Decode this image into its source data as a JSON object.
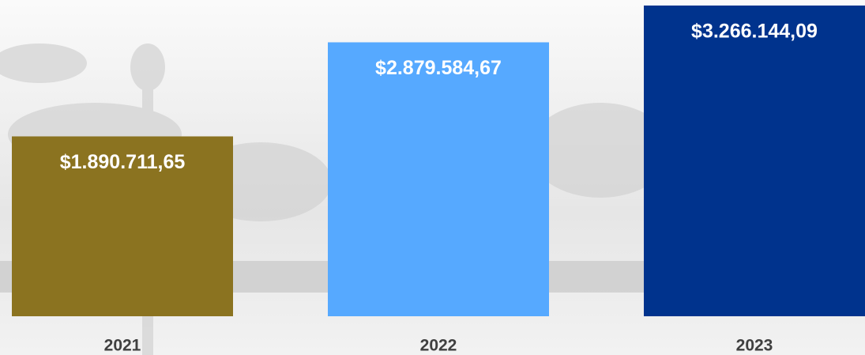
{
  "chart_data": {
    "type": "bar",
    "categories": [
      "2021",
      "2022",
      "2023"
    ],
    "values": [
      1890711.65,
      2879584.67,
      3266144.09
    ],
    "value_labels": [
      "$1.890.711,65",
      "$2.879.584,67",
      "$3.266.144,09"
    ],
    "colors": [
      "#8b7320",
      "#56a9ff",
      "#00338d"
    ]
  }
}
